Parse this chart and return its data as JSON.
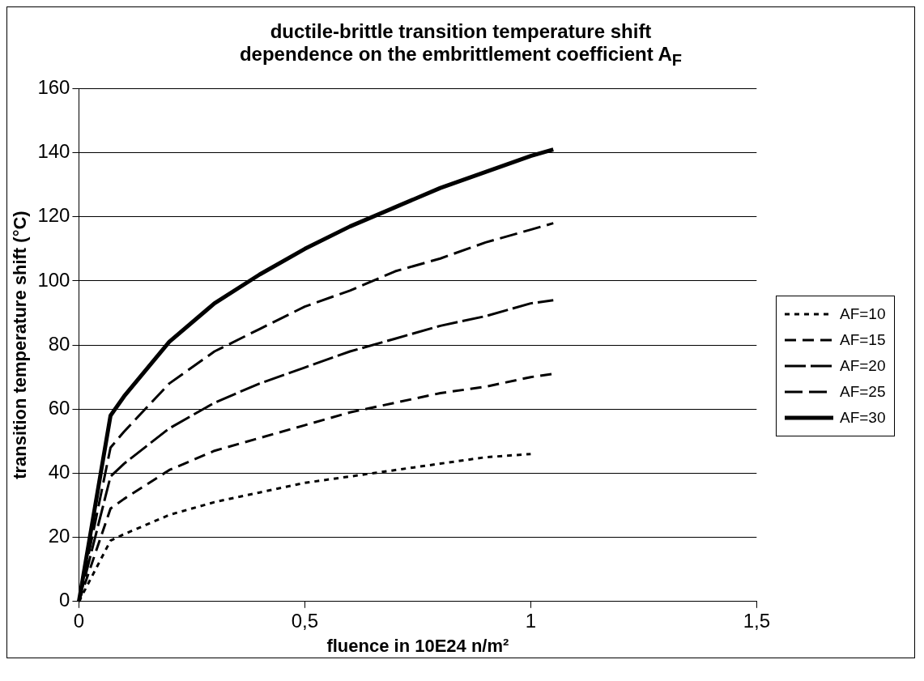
{
  "chart_data": {
    "type": "line",
    "title": "ductile-brittle transition temperature shift\ndependence on the embrittlement coefficient A$_{F}$",
    "xlabel": "fluence in 10E24 n/m²",
    "ylabel": "transition temperature shift (°C)",
    "x": [
      0,
      0.07,
      0.1,
      0.2,
      0.3,
      0.4,
      0.5,
      0.6,
      0.7,
      0.8,
      0.9,
      1.0,
      1.05
    ],
    "series": [
      {
        "name": "AF=10",
        "color": "#000000",
        "line_style": "dotted",
        "values": [
          0,
          19,
          21,
          27,
          31,
          34,
          37,
          39,
          41,
          43,
          45,
          46,
          null
        ]
      },
      {
        "name": "AF=15",
        "color": "#000000",
        "line_style": "dashed",
        "values": [
          0,
          29,
          32,
          41,
          47,
          51,
          55,
          59,
          62,
          65,
          67,
          70,
          71
        ]
      },
      {
        "name": "AF=20",
        "color": "#000000",
        "line_style": "dashed",
        "values": [
          0,
          39,
          43,
          54,
          62,
          68,
          73,
          78,
          82,
          86,
          89,
          93,
          94
        ]
      },
      {
        "name": "AF=25",
        "color": "#000000",
        "line_style": "dashed",
        "values": [
          0,
          48,
          53,
          68,
          78,
          85,
          92,
          97,
          103,
          107,
          112,
          116,
          118
        ]
      },
      {
        "name": "AF=30",
        "color": "#000000",
        "line_style": "solid",
        "values": [
          0,
          58,
          64,
          81,
          93,
          102,
          110,
          117,
          123,
          129,
          134,
          139,
          141
        ]
      }
    ],
    "xlim": [
      0,
      1.5
    ],
    "xticks": [
      0,
      {
        "value": 0.5,
        "label": "0,5"
      },
      1,
      {
        "value": 1.5,
        "label": "1,5"
      }
    ],
    "ylim": [
      0,
      160
    ],
    "yticks": [
      0,
      20,
      40,
      60,
      80,
      100,
      120,
      140,
      160
    ],
    "grid": "y",
    "legend": "right",
    "marker": "none"
  }
}
